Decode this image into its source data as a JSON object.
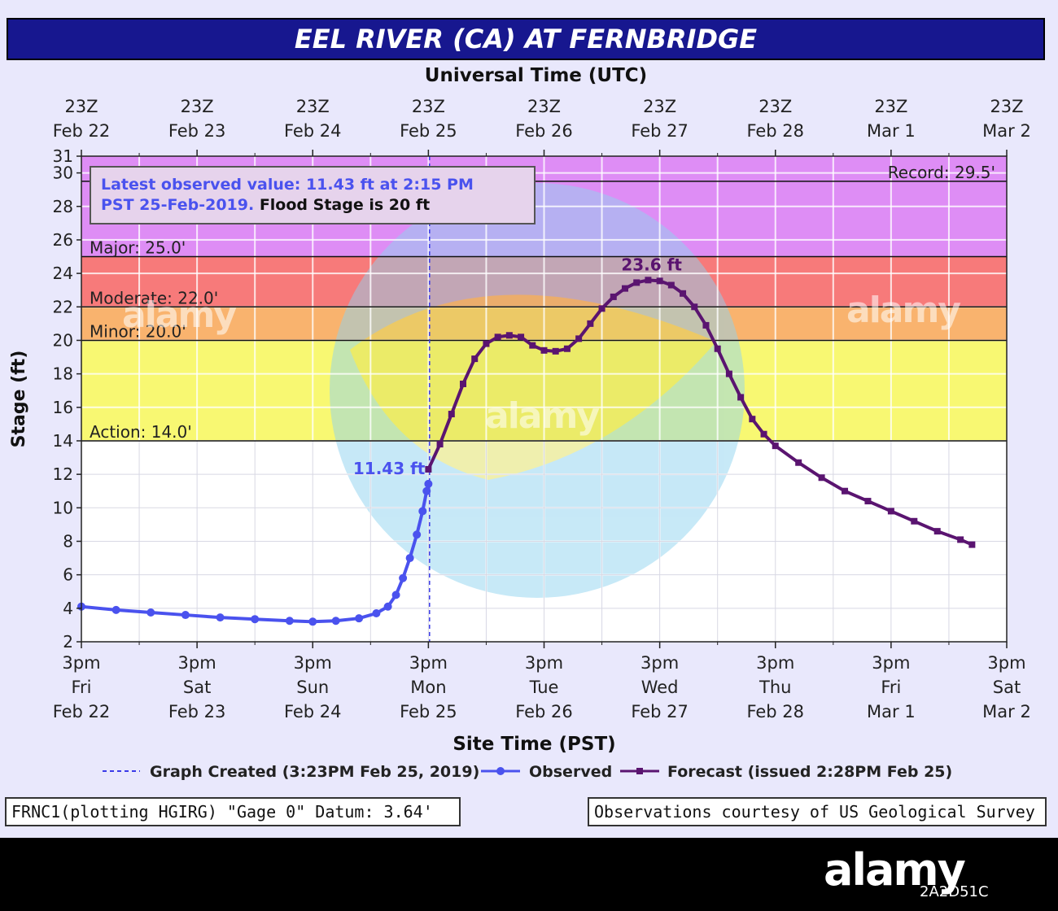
{
  "title": "EEL RIVER (CA) AT FERNBRIDGE",
  "footer": {
    "left": "FRNC1(plotting HGIRG) \"Gage 0\" Datum: 3.64'",
    "right": "Observations courtesy of US Geological Survey"
  },
  "watermark": {
    "brand": "alamy",
    "image_id": "2A2D51C"
  },
  "colors": {
    "panel": "#e9e8fc",
    "title_bg": "#17178f",
    "record_band": "#de8df5",
    "major_band": "#f77a7a",
    "moderate_band": "#f9b36e",
    "minor_band": "#f8f872",
    "observed": "#4a52ee",
    "forecast": "#5a1470"
  },
  "chart_data": {
    "type": "line",
    "top_axis_label": "Universal Time (UTC)",
    "top_ticks": [
      {
        "x": 0,
        "line1": "23Z",
        "line2": "Feb 22"
      },
      {
        "x": 1,
        "line1": "23Z",
        "line2": "Feb 23"
      },
      {
        "x": 2,
        "line1": "23Z",
        "line2": "Feb 24"
      },
      {
        "x": 3,
        "line1": "23Z",
        "line2": "Feb 25"
      },
      {
        "x": 4,
        "line1": "23Z",
        "line2": "Feb 26"
      },
      {
        "x": 5,
        "line1": "23Z",
        "line2": "Feb 27"
      },
      {
        "x": 6,
        "line1": "23Z",
        "line2": "Feb 28"
      },
      {
        "x": 7,
        "line1": "23Z",
        "line2": "Mar  1"
      },
      {
        "x": 8,
        "line1": "23Z",
        "line2": "Mar  2"
      }
    ],
    "bottom_axis_label": "Site Time (PST)",
    "bottom_ticks": [
      {
        "x": 0,
        "line1": "3pm",
        "line2": "Fri",
        "line3": "Feb 22"
      },
      {
        "x": 1,
        "line1": "3pm",
        "line2": "Sat",
        "line3": "Feb 23"
      },
      {
        "x": 2,
        "line1": "3pm",
        "line2": "Sun",
        "line3": "Feb 24"
      },
      {
        "x": 3,
        "line1": "3pm",
        "line2": "Mon",
        "line3": "Feb 25"
      },
      {
        "x": 4,
        "line1": "3pm",
        "line2": "Tue",
        "line3": "Feb 26"
      },
      {
        "x": 5,
        "line1": "3pm",
        "line2": "Wed",
        "line3": "Feb 27"
      },
      {
        "x": 6,
        "line1": "3pm",
        "line2": "Thu",
        "line3": "Feb 28"
      },
      {
        "x": 7,
        "line1": "3pm",
        "line2": "Fri",
        "line3": "Mar 1"
      },
      {
        "x": 8,
        "line1": "3pm",
        "line2": "Sat",
        "line3": "Mar 2"
      }
    ],
    "xlim": [
      0,
      8
    ],
    "ylabel": "Stage (ft)",
    "ylim": [
      2,
      31
    ],
    "yticks": [
      2,
      4,
      6,
      8,
      10,
      12,
      14,
      16,
      18,
      20,
      22,
      24,
      26,
      28,
      30,
      31
    ],
    "bands": [
      {
        "name": "Record",
        "from": 25,
        "to": 31,
        "color": "#de8df5"
      },
      {
        "name": "Major",
        "from": 22,
        "to": 25,
        "color": "#f77a7a"
      },
      {
        "name": "Moderate",
        "from": 20,
        "to": 22,
        "color": "#f9b36e"
      },
      {
        "name": "Minor",
        "from": 14,
        "to": 20,
        "color": "#f8f872"
      }
    ],
    "thresholds": [
      {
        "label": "Record: 29.5'",
        "value": 29.5
      },
      {
        "label": "Major: 25.0'",
        "value": 25
      },
      {
        "label": "Moderate: 22.0'",
        "value": 22
      },
      {
        "label": "Minor: 20.0'",
        "value": 20
      },
      {
        "label": "Action: 14.0'",
        "value": 14
      }
    ],
    "info_box": {
      "line1": "Latest observed value: 11.43  ft at 2:15 PM",
      "line2a": "PST 25-Feb-2019.",
      "line2b": " Flood Stage is 20 ft"
    },
    "graph_created_x": 3.01,
    "observed_label": "11.43 ft",
    "observed_label_value": 11.43,
    "crest_label": "23.6 ft",
    "crest_value": 23.6,
    "crest_x": 5.0,
    "series": [
      {
        "name": "Observed",
        "color": "#4a52ee",
        "marker": "circle",
        "points": [
          [
            0.0,
            4.1
          ],
          [
            0.3,
            3.9
          ],
          [
            0.6,
            3.75
          ],
          [
            0.9,
            3.6
          ],
          [
            1.2,
            3.45
          ],
          [
            1.5,
            3.35
          ],
          [
            1.8,
            3.25
          ],
          [
            2.0,
            3.2
          ],
          [
            2.2,
            3.25
          ],
          [
            2.4,
            3.4
          ],
          [
            2.55,
            3.7
          ],
          [
            2.65,
            4.1
          ],
          [
            2.72,
            4.8
          ],
          [
            2.78,
            5.8
          ],
          [
            2.84,
            7.0
          ],
          [
            2.9,
            8.4
          ],
          [
            2.95,
            9.8
          ],
          [
            2.985,
            11.0
          ],
          [
            3.0,
            11.43
          ]
        ]
      },
      {
        "name": "Forecast",
        "color": "#5a1470",
        "marker": "square",
        "points": [
          [
            3.0,
            12.3
          ],
          [
            3.1,
            13.8
          ],
          [
            3.2,
            15.6
          ],
          [
            3.3,
            17.4
          ],
          [
            3.4,
            18.9
          ],
          [
            3.5,
            19.8
          ],
          [
            3.6,
            20.2
          ],
          [
            3.7,
            20.3
          ],
          [
            3.8,
            20.2
          ],
          [
            3.9,
            19.7
          ],
          [
            4.0,
            19.4
          ],
          [
            4.1,
            19.35
          ],
          [
            4.2,
            19.5
          ],
          [
            4.3,
            20.1
          ],
          [
            4.4,
            21.0
          ],
          [
            4.5,
            21.9
          ],
          [
            4.6,
            22.6
          ],
          [
            4.7,
            23.1
          ],
          [
            4.8,
            23.45
          ],
          [
            4.9,
            23.6
          ],
          [
            5.0,
            23.55
          ],
          [
            5.1,
            23.3
          ],
          [
            5.2,
            22.8
          ],
          [
            5.3,
            22.0
          ],
          [
            5.4,
            20.9
          ],
          [
            5.5,
            19.5
          ],
          [
            5.6,
            18.0
          ],
          [
            5.7,
            16.6
          ],
          [
            5.8,
            15.3
          ],
          [
            5.9,
            14.4
          ],
          [
            6.0,
            13.7
          ],
          [
            6.2,
            12.7
          ],
          [
            6.4,
            11.8
          ],
          [
            6.6,
            11.0
          ],
          [
            6.8,
            10.4
          ],
          [
            7.0,
            9.8
          ],
          [
            7.2,
            9.2
          ],
          [
            7.4,
            8.6
          ],
          [
            7.6,
            8.1
          ],
          [
            7.7,
            7.8
          ]
        ]
      }
    ],
    "legend": [
      {
        "label": "Graph Created (3:23PM Feb 25, 2019)",
        "style": "dashed",
        "color": "#3a3ae8"
      },
      {
        "label": "Observed",
        "style": "line-circle",
        "color": "#4a52ee"
      },
      {
        "label": "Forecast (issued 2:28PM Feb 25)",
        "style": "line-square",
        "color": "#5a1470"
      }
    ]
  }
}
